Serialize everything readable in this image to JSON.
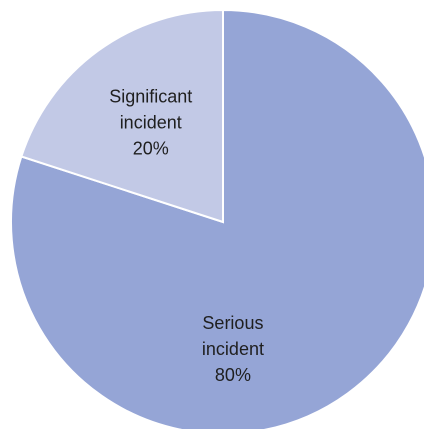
{
  "chart_data": {
    "type": "pie",
    "title": "",
    "start_angle_deg": 0,
    "direction": "clockwise",
    "slices": [
      {
        "name": "Serious incident",
        "label_lines": [
          "Serious",
          "incident"
        ],
        "value": 80,
        "percent_label": "80%",
        "color": "#95a5d6"
      },
      {
        "name": "Significant incident",
        "label_lines": [
          "Significant",
          "incident"
        ],
        "value": 20,
        "percent_label": "20%",
        "color": "#c2c9e6"
      }
    ],
    "legend": "none",
    "slice_border_color": "#ffffff"
  }
}
